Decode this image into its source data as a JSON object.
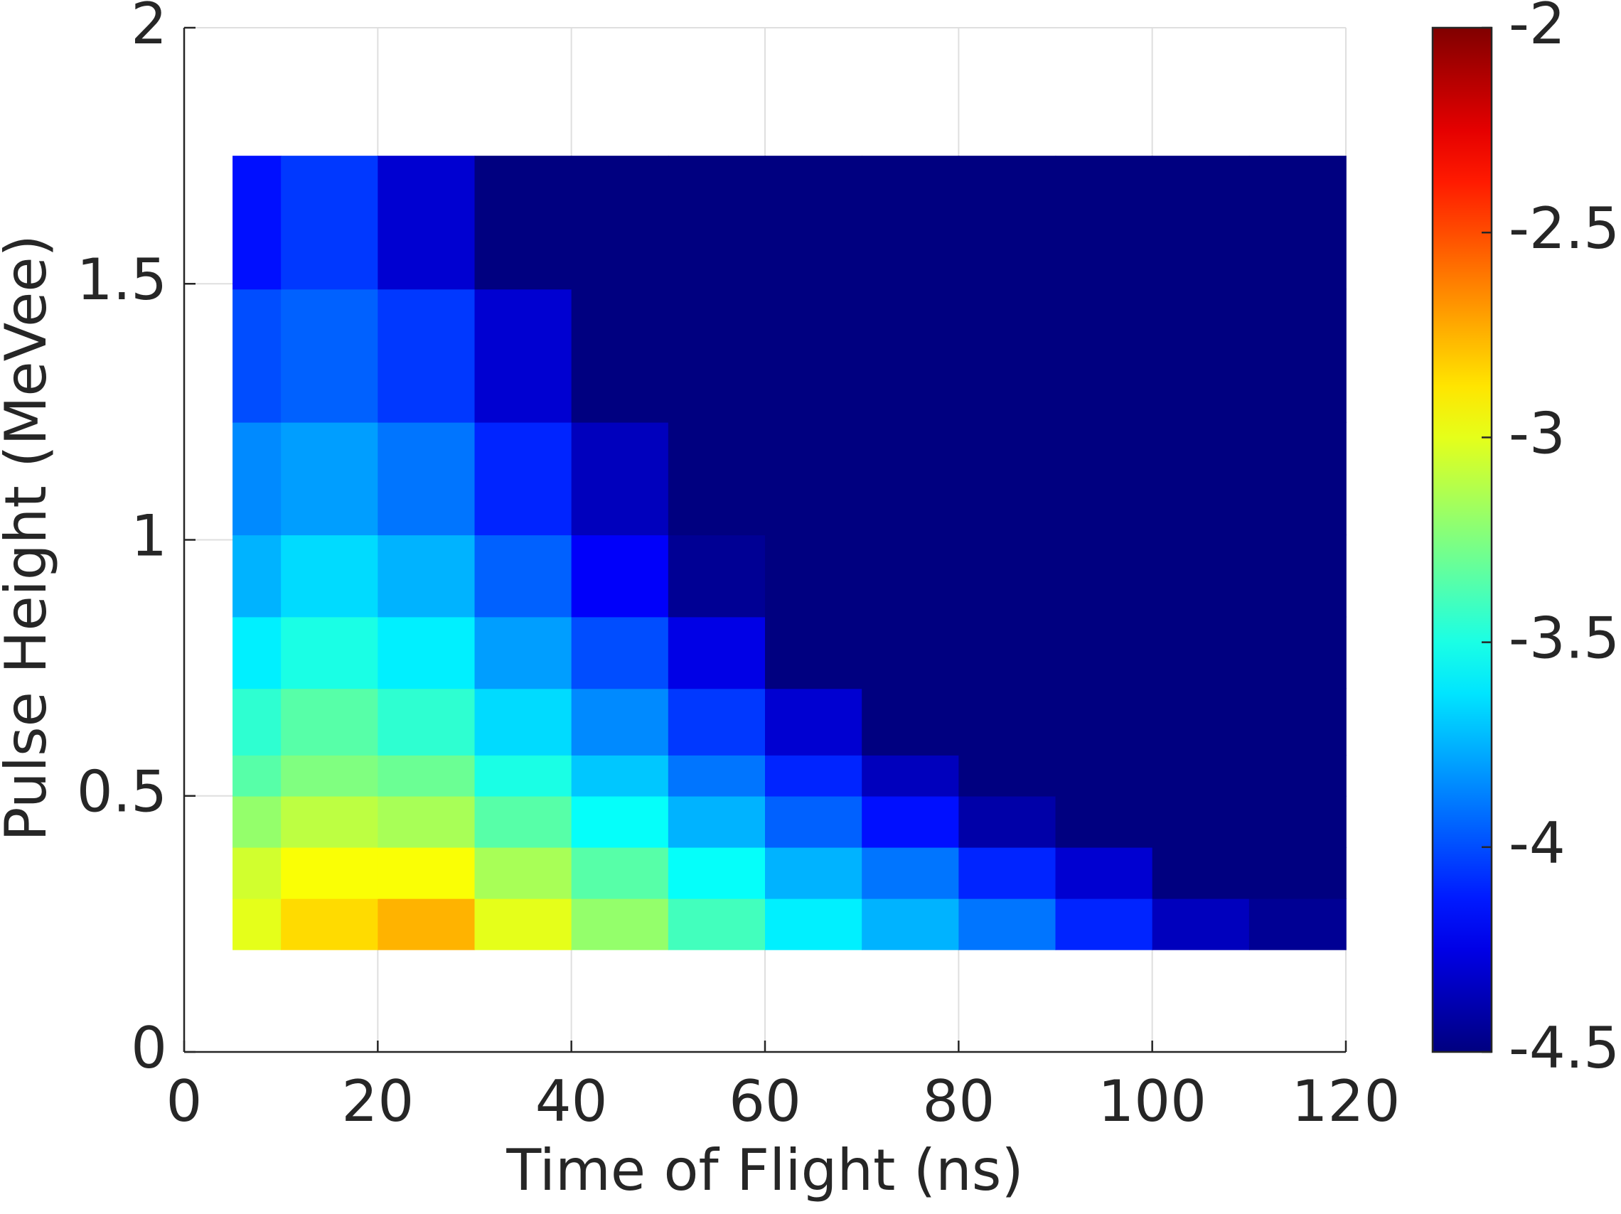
{
  "chart_data": {
    "type": "heatmap",
    "xlabel": "Time of Flight (ns)",
    "ylabel": "Pulse Height (MeVee)",
    "xlim": [
      0,
      120
    ],
    "xticks": [
      0,
      20,
      40,
      60,
      80,
      100,
      120
    ],
    "ylim": [
      0,
      2
    ],
    "yticks": [
      0,
      0.5,
      1,
      1.5,
      2
    ],
    "grid": true,
    "colormap": "jet",
    "clim": [
      -4.5,
      -2
    ],
    "cticks": [
      -4.5,
      -4,
      -3.5,
      -3,
      -2.5,
      -2
    ],
    "xbins": [
      5,
      10,
      20,
      30,
      40,
      50,
      60,
      70,
      80,
      90,
      100,
      110,
      120
    ],
    "ybins": [
      0.2,
      0.3,
      0.4,
      0.5,
      0.58,
      0.71,
      0.85,
      1.01,
      1.23,
      1.49,
      1.75
    ],
    "z": [
      [
        -3.0,
        -2.85,
        -2.75,
        -3.0,
        -3.2,
        -3.4,
        -3.6,
        -3.75,
        -3.9,
        -4.1,
        -4.35,
        -4.45
      ],
      [
        -3.05,
        -2.95,
        -2.95,
        -3.15,
        -3.35,
        -3.55,
        -3.75,
        -3.9,
        -4.1,
        -4.3,
        -4.5,
        -4.5
      ],
      [
        -3.2,
        -3.1,
        -3.15,
        -3.35,
        -3.55,
        -3.75,
        -3.95,
        -4.15,
        -4.4,
        -4.5,
        -4.5,
        -4.5
      ],
      [
        -3.35,
        -3.25,
        -3.3,
        -3.5,
        -3.7,
        -3.9,
        -4.1,
        -4.35,
        -4.5,
        -4.5,
        -4.5,
        -4.5
      ],
      [
        -3.45,
        -3.35,
        -3.45,
        -3.65,
        -3.85,
        -4.05,
        -4.3,
        -4.5,
        -4.5,
        -4.5,
        -4.5,
        -4.5
      ],
      [
        -3.6,
        -3.5,
        -3.6,
        -3.8,
        -4.0,
        -4.25,
        -4.5,
        -4.5,
        -4.5,
        -4.5,
        -4.5,
        -4.5
      ],
      [
        -3.75,
        -3.65,
        -3.75,
        -3.95,
        -4.2,
        -4.45,
        -4.5,
        -4.5,
        -4.5,
        -4.5,
        -4.5,
        -4.5
      ],
      [
        -3.85,
        -3.8,
        -3.9,
        -4.1,
        -4.35,
        -4.5,
        -4.5,
        -4.5,
        -4.5,
        -4.5,
        -4.5,
        -4.5
      ],
      [
        -4.0,
        -3.95,
        -4.05,
        -4.3,
        -4.5,
        -4.5,
        -4.5,
        -4.5,
        -4.5,
        -4.5,
        -4.5,
        -4.5
      ],
      [
        -4.15,
        -4.05,
        -4.3,
        -4.5,
        -4.5,
        -4.5,
        -4.5,
        -4.5,
        -4.5,
        -4.5,
        -4.5,
        -4.5
      ]
    ]
  }
}
